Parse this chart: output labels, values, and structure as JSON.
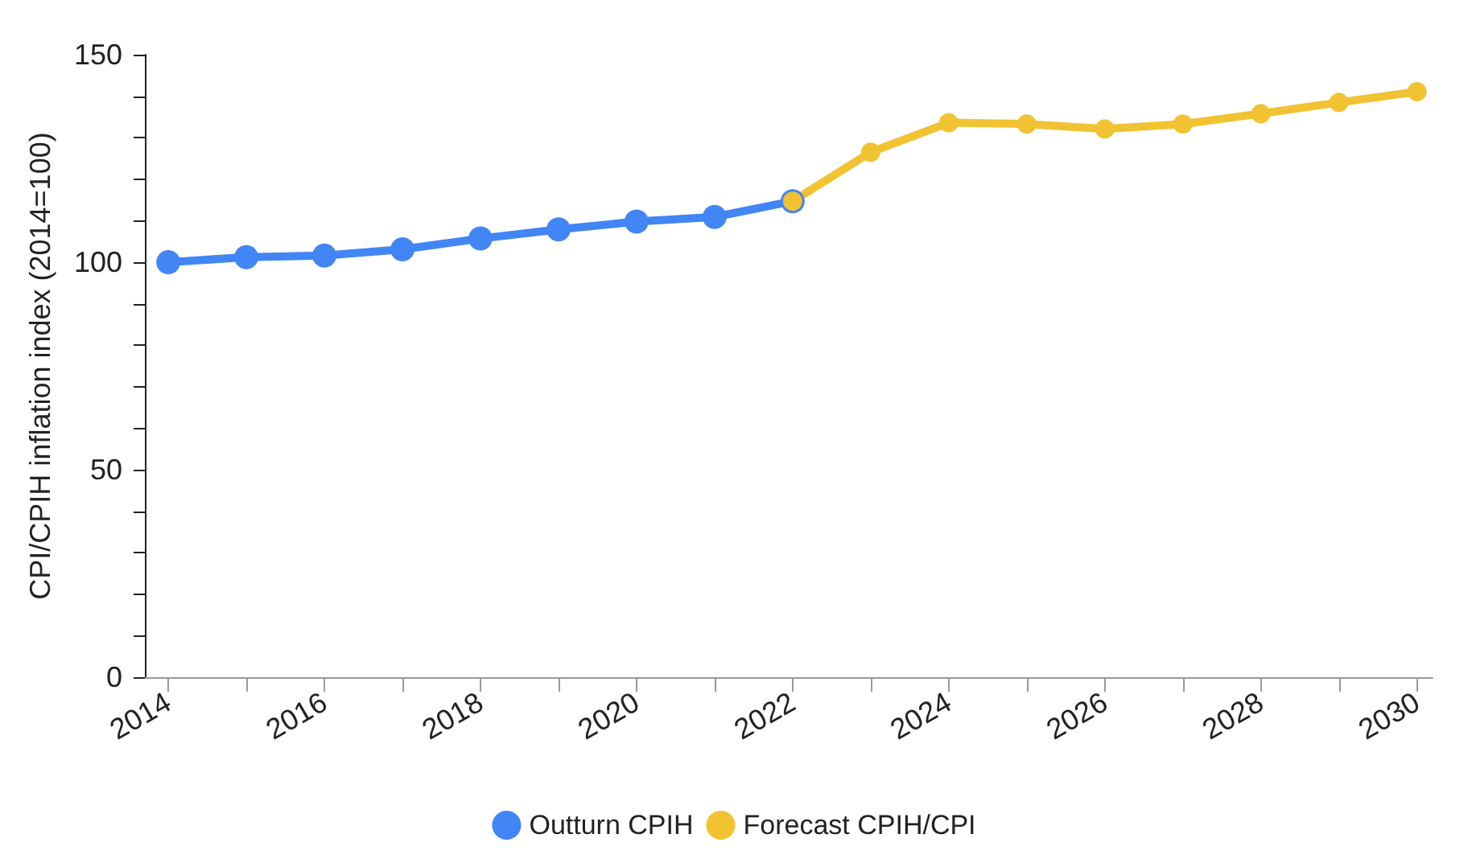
{
  "chart_data": {
    "type": "line",
    "ylabel": "CPI/CPIH inflation index (2014=100)",
    "xlim": [
      2013.7,
      2030.2
    ],
    "xticks": [
      2014,
      {
        "value": 2015,
        "label": null
      },
      2016,
      {
        "value": 2017,
        "label": null
      },
      2018,
      {
        "value": 2019,
        "label": null
      },
      2020,
      {
        "value": 2021,
        "label": null
      },
      2022,
      {
        "value": 2023,
        "label": null
      },
      2024,
      {
        "value": 2025,
        "label": null
      },
      2026,
      {
        "value": 2027,
        "label": null
      },
      2028,
      {
        "value": 2029,
        "label": null
      },
      2030
    ],
    "ylim": [
      0,
      150
    ],
    "yticks": [
      0,
      {
        "value": 10,
        "label": null
      },
      {
        "value": 20,
        "label": null
      },
      {
        "value": 30,
        "label": null
      },
      {
        "value": 40,
        "label": null
      },
      50,
      {
        "value": 60,
        "label": null
      },
      {
        "value": 70,
        "label": null
      },
      {
        "value": 80,
        "label": null
      },
      {
        "value": 90,
        "label": null
      },
      100,
      {
        "value": 110,
        "label": null
      },
      {
        "value": 120,
        "label": null
      },
      {
        "value": 130,
        "label": null
      },
      {
        "value": 140,
        "label": null
      },
      150
    ],
    "grid": false,
    "legend": "bottom",
    "marker": "circle",
    "line_style": "solid",
    "series": [
      {
        "name": "Outturn CPIH",
        "color": "#4285f4",
        "x": [
          2014,
          2015,
          2016,
          2017,
          2018,
          2019,
          2020,
          2021,
          2022
        ],
        "values": [
          100,
          101.2,
          101.6,
          103.1,
          105.7,
          107.9,
          109.8,
          110.9,
          114.7
        ]
      },
      {
        "name": "Forecast CPIH/CPI",
        "color": "#f1c232",
        "x": [
          2022,
          2023,
          2024,
          2025,
          2026,
          2027,
          2028,
          2029,
          2030
        ],
        "values": [
          114.7,
          126.5,
          133.6,
          133.3,
          132.1,
          133.3,
          135.8,
          138.5,
          141.1
        ]
      }
    ]
  }
}
